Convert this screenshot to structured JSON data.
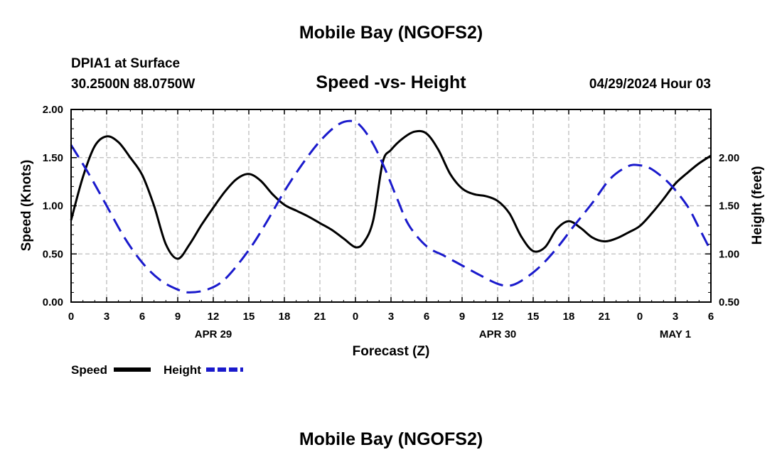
{
  "chart_data": {
    "type": "line",
    "title": "Mobile Bay (NGOFS2)",
    "footer_title": "Mobile Bay (NGOFS2)",
    "subtitle": "Speed -vs- Height",
    "station": "DPIA1 at Surface",
    "location": "30.2500N  88.0750W",
    "run_time": "04/29/2024 Hour 03",
    "xlabel": "Forecast (Z)",
    "ylabel": "Speed (Knots)",
    "y2label": "Height (feet)",
    "xlim": [
      0,
      54
    ],
    "ylim": [
      0,
      2
    ],
    "y2lim": [
      0.5,
      2.5
    ],
    "grid": true,
    "legend_position": "bottom-left",
    "x_ticks": [
      {
        "x": 0,
        "label": "0"
      },
      {
        "x": 3,
        "label": "3"
      },
      {
        "x": 6,
        "label": "6"
      },
      {
        "x": 9,
        "label": "9"
      },
      {
        "x": 12,
        "label": "12"
      },
      {
        "x": 15,
        "label": "15"
      },
      {
        "x": 18,
        "label": "18"
      },
      {
        "x": 21,
        "label": "21"
      },
      {
        "x": 24,
        "label": "0"
      },
      {
        "x": 27,
        "label": "3"
      },
      {
        "x": 30,
        "label": "6"
      },
      {
        "x": 33,
        "label": "9"
      },
      {
        "x": 36,
        "label": "12"
      },
      {
        "x": 39,
        "label": "15"
      },
      {
        "x": 42,
        "label": "18"
      },
      {
        "x": 45,
        "label": "21"
      },
      {
        "x": 48,
        "label": "0"
      },
      {
        "x": 51,
        "label": "3"
      },
      {
        "x": 54,
        "label": "6"
      }
    ],
    "date_labels": [
      {
        "x": 12,
        "label": "APR 29"
      },
      {
        "x": 36,
        "label": "APR 30"
      },
      {
        "x": 51,
        "label": "MAY 1"
      }
    ],
    "y_ticks": [
      "0.00",
      "0.50",
      "1.00",
      "1.50",
      "2.00"
    ],
    "y2_ticks": [
      "0.50",
      "1.00",
      "1.50",
      "2.00"
    ],
    "series": [
      {
        "name": "Speed",
        "axis": "left",
        "color": "#000000",
        "dash": "solid",
        "points": [
          [
            0,
            0.85
          ],
          [
            1,
            1.3
          ],
          [
            2,
            1.62
          ],
          [
            3,
            1.72
          ],
          [
            4,
            1.66
          ],
          [
            5,
            1.5
          ],
          [
            6,
            1.32
          ],
          [
            7,
            1.0
          ],
          [
            8,
            0.6
          ],
          [
            9,
            0.45
          ],
          [
            10,
            0.6
          ],
          [
            11,
            0.8
          ],
          [
            12,
            0.98
          ],
          [
            13,
            1.15
          ],
          [
            14,
            1.28
          ],
          [
            15,
            1.33
          ],
          [
            16,
            1.26
          ],
          [
            17,
            1.12
          ],
          [
            18,
            1.01
          ],
          [
            19,
            0.95
          ],
          [
            20,
            0.89
          ],
          [
            21,
            0.82
          ],
          [
            22,
            0.75
          ],
          [
            23,
            0.66
          ],
          [
            24,
            0.57
          ],
          [
            24.7,
            0.62
          ],
          [
            25.5,
            0.85
          ],
          [
            26.3,
            1.45
          ],
          [
            27,
            1.58
          ],
          [
            28,
            1.7
          ],
          [
            29,
            1.77
          ],
          [
            30,
            1.75
          ],
          [
            31,
            1.58
          ],
          [
            32,
            1.33
          ],
          [
            33,
            1.18
          ],
          [
            34,
            1.12
          ],
          [
            35,
            1.1
          ],
          [
            36,
            1.05
          ],
          [
            37,
            0.92
          ],
          [
            38,
            0.68
          ],
          [
            39,
            0.53
          ],
          [
            40,
            0.57
          ],
          [
            41,
            0.76
          ],
          [
            42,
            0.84
          ],
          [
            43,
            0.77
          ],
          [
            44,
            0.67
          ],
          [
            45,
            0.63
          ],
          [
            46,
            0.66
          ],
          [
            47,
            0.72
          ],
          [
            48,
            0.79
          ],
          [
            49,
            0.92
          ],
          [
            50,
            1.07
          ],
          [
            51,
            1.23
          ],
          [
            52,
            1.34
          ],
          [
            53,
            1.44
          ],
          [
            54,
            1.52
          ]
        ]
      },
      {
        "name": "Height",
        "axis": "right",
        "color": "#1a1acc",
        "dash": "dashed",
        "points": [
          [
            0,
            2.13
          ],
          [
            1.5,
            1.83
          ],
          [
            3,
            1.5
          ],
          [
            4.5,
            1.17
          ],
          [
            6,
            0.91
          ],
          [
            7.5,
            0.73
          ],
          [
            9,
            0.63
          ],
          [
            10,
            0.6
          ],
          [
            11.5,
            0.63
          ],
          [
            13,
            0.74
          ],
          [
            15,
            1.04
          ],
          [
            16.5,
            1.33
          ],
          [
            18,
            1.65
          ],
          [
            19.5,
            1.93
          ],
          [
            21,
            2.17
          ],
          [
            22.5,
            2.34
          ],
          [
            23.7,
            2.38
          ],
          [
            24.5,
            2.32
          ],
          [
            25.5,
            2.14
          ],
          [
            26.5,
            1.88
          ],
          [
            27.5,
            1.58
          ],
          [
            28.5,
            1.3
          ],
          [
            30,
            1.08
          ],
          [
            31.5,
            0.98
          ],
          [
            33,
            0.88
          ],
          [
            34.5,
            0.78
          ],
          [
            36,
            0.69
          ],
          [
            37,
            0.67
          ],
          [
            38,
            0.72
          ],
          [
            39.5,
            0.86
          ],
          [
            41,
            1.06
          ],
          [
            42.5,
            1.3
          ],
          [
            44,
            1.53
          ],
          [
            45.5,
            1.78
          ],
          [
            47,
            1.91
          ],
          [
            48,
            1.92
          ],
          [
            49,
            1.88
          ],
          [
            50.5,
            1.73
          ],
          [
            52,
            1.5
          ],
          [
            53,
            1.27
          ],
          [
            54,
            1.03
          ]
        ]
      }
    ]
  }
}
